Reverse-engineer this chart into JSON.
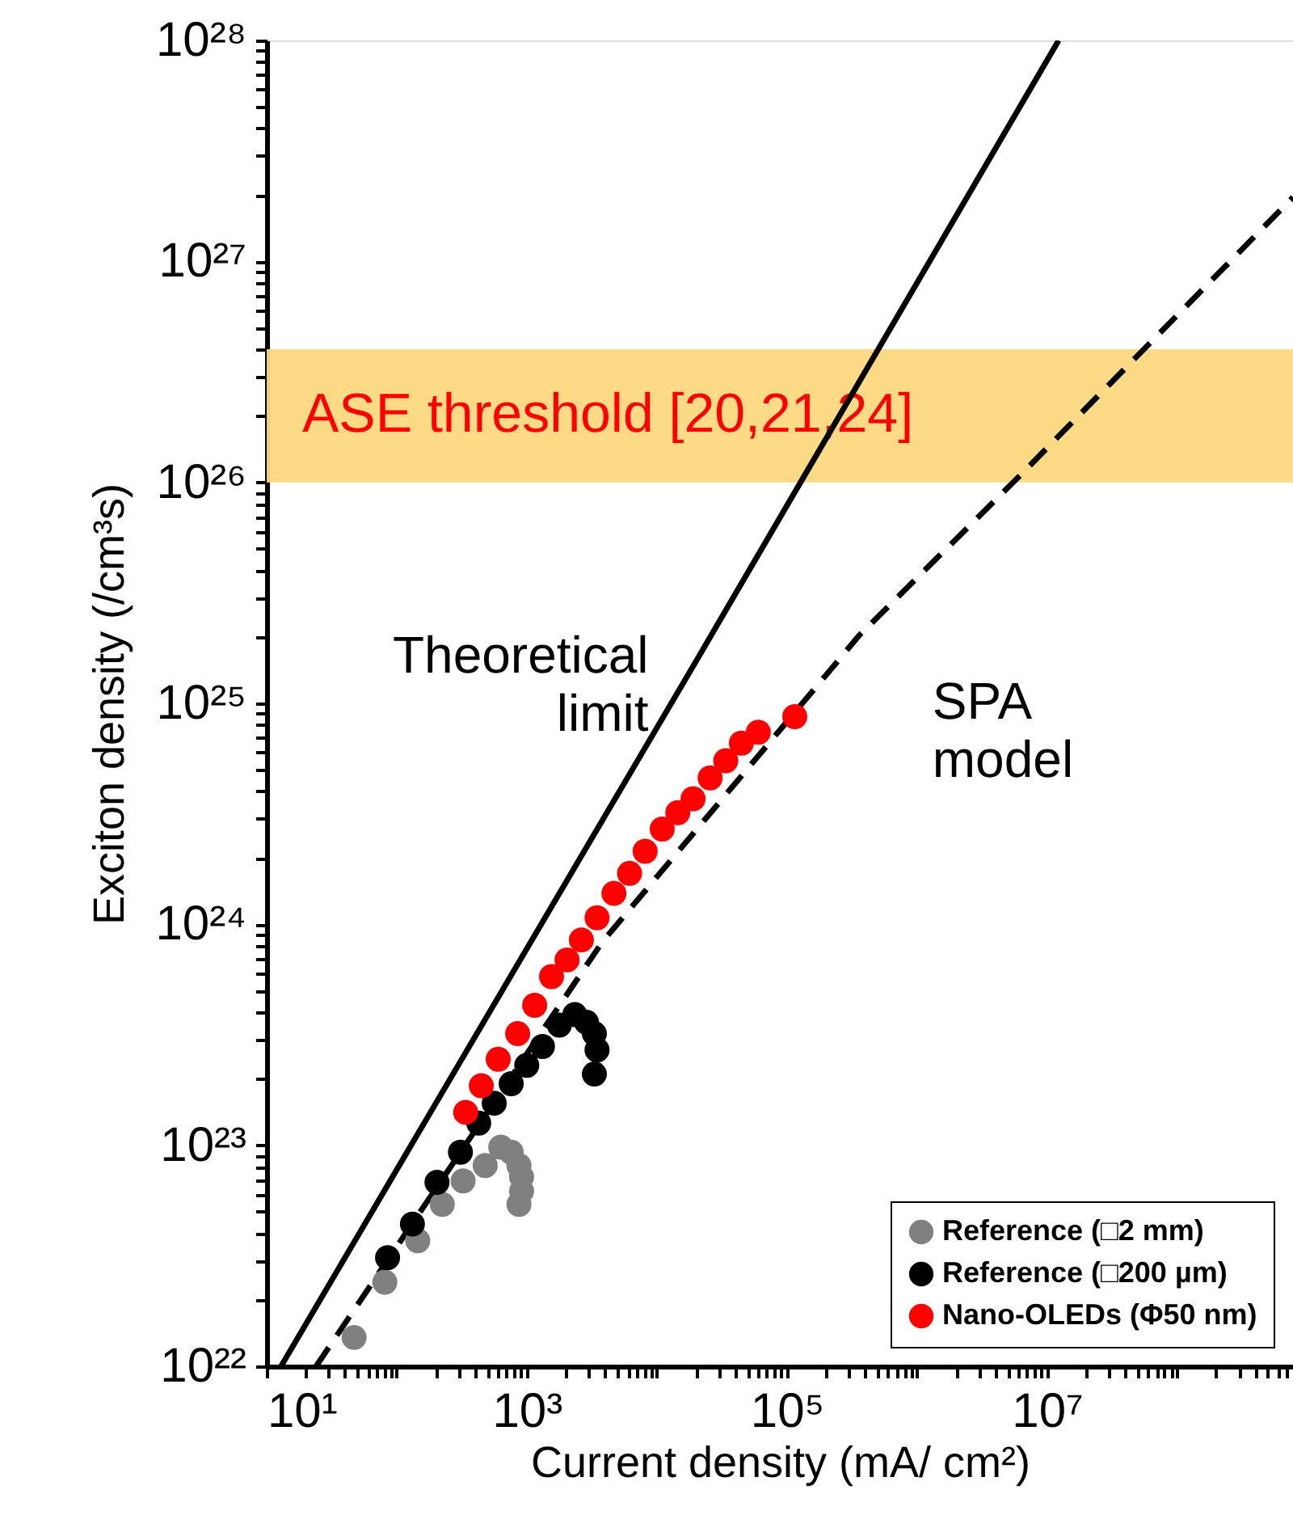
{
  "chart_data": {
    "type": "scatter",
    "log": "xy",
    "xlabel": "Current density (mA/ cm²)",
    "ylabel": "Exciton density (/cm³s)",
    "xlim": [
      10,
      780000000
    ],
    "ylim": [
      1e+22,
      1e+28
    ],
    "xticks": [
      {
        "value": 10,
        "label": "10¹"
      },
      {
        "value": 20,
        "label": null
      },
      {
        "value": 30,
        "label": null
      },
      {
        "value": 40,
        "label": null
      },
      {
        "value": 50,
        "label": null
      },
      {
        "value": 60,
        "label": null
      },
      {
        "value": 70,
        "label": null
      },
      {
        "value": 80,
        "label": null
      },
      {
        "value": 90,
        "label": null
      },
      {
        "value": 100,
        "label": null
      },
      {
        "value": 200,
        "label": null
      },
      {
        "value": 300,
        "label": null
      },
      {
        "value": 400,
        "label": null
      },
      {
        "value": 500,
        "label": null
      },
      {
        "value": 600,
        "label": null
      },
      {
        "value": 700,
        "label": null
      },
      {
        "value": 800,
        "label": null
      },
      {
        "value": 900,
        "label": null
      },
      {
        "value": 1000,
        "label": "10³"
      },
      {
        "value": 2000,
        "label": null
      },
      {
        "value": 3000,
        "label": null
      },
      {
        "value": 4000,
        "label": null
      },
      {
        "value": 5000,
        "label": null
      },
      {
        "value": 6000,
        "label": null
      },
      {
        "value": 7000,
        "label": null
      },
      {
        "value": 8000,
        "label": null
      },
      {
        "value": 9000,
        "label": null
      },
      {
        "value": 10000,
        "label": null
      },
      {
        "value": 20000,
        "label": null
      },
      {
        "value": 30000,
        "label": null
      },
      {
        "value": 40000,
        "label": null
      },
      {
        "value": 50000,
        "label": null
      },
      {
        "value": 60000,
        "label": null
      },
      {
        "value": 70000,
        "label": null
      },
      {
        "value": 80000,
        "label": null
      },
      {
        "value": 90000,
        "label": null
      },
      {
        "value": 100000,
        "label": "10⁵"
      },
      {
        "value": 200000,
        "label": null
      },
      {
        "value": 300000,
        "label": null
      },
      {
        "value": 400000,
        "label": null
      },
      {
        "value": 500000,
        "label": null
      },
      {
        "value": 600000,
        "label": null
      },
      {
        "value": 700000,
        "label": null
      },
      {
        "value": 800000,
        "label": null
      },
      {
        "value": 900000,
        "label": null
      },
      {
        "value": 1000000,
        "label": null
      },
      {
        "value": 2000000,
        "label": null
      },
      {
        "value": 3000000,
        "label": null
      },
      {
        "value": 4000000,
        "label": null
      },
      {
        "value": 5000000,
        "label": null
      },
      {
        "value": 6000000,
        "label": null
      },
      {
        "value": 7000000,
        "label": null
      },
      {
        "value": 8000000,
        "label": null
      },
      {
        "value": 9000000,
        "label": null
      },
      {
        "value": 10000000,
        "label": "10⁷"
      },
      {
        "value": 20000000,
        "label": null
      },
      {
        "value": 30000000,
        "label": null
      },
      {
        "value": 40000000,
        "label": null
      },
      {
        "value": 50000000,
        "label": null
      },
      {
        "value": 60000000,
        "label": null
      },
      {
        "value": 70000000,
        "label": null
      },
      {
        "value": 80000000,
        "label": null
      },
      {
        "value": 90000000,
        "label": null
      },
      {
        "value": 100000000,
        "label": null
      },
      {
        "value": 200000000,
        "label": null
      },
      {
        "value": 300000000,
        "label": null
      },
      {
        "value": 400000000,
        "label": null
      },
      {
        "value": 500000000,
        "label": null
      },
      {
        "value": 600000000,
        "label": null
      },
      {
        "value": 700000000,
        "label": null
      }
    ],
    "yticks": [
      {
        "value": 1e+22,
        "label": "10²²"
      },
      {
        "value": 2e+22,
        "label": null
      },
      {
        "value": 3e+22,
        "label": null
      },
      {
        "value": 4e+22,
        "label": null
      },
      {
        "value": 5e+22,
        "label": null
      },
      {
        "value": 6e+22,
        "label": null
      },
      {
        "value": 7e+22,
        "label": null
      },
      {
        "value": 8e+22,
        "label": null
      },
      {
        "value": 9e+22,
        "label": null
      },
      {
        "value": 1e+23,
        "label": "10²³"
      },
      {
        "value": 2e+23,
        "label": null
      },
      {
        "value": 3e+23,
        "label": null
      },
      {
        "value": 4e+23,
        "label": null
      },
      {
        "value": 5e+23,
        "label": null
      },
      {
        "value": 6e+23,
        "label": null
      },
      {
        "value": 7e+23,
        "label": null
      },
      {
        "value": 8e+23,
        "label": null
      },
      {
        "value": 9e+23,
        "label": null
      },
      {
        "value": 1e+24,
        "label": "10²⁴"
      },
      {
        "value": 2e+24,
        "label": null
      },
      {
        "value": 3e+24,
        "label": null
      },
      {
        "value": 4e+24,
        "label": null
      },
      {
        "value": 5e+24,
        "label": null
      },
      {
        "value": 6e+24,
        "label": null
      },
      {
        "value": 7e+24,
        "label": null
      },
      {
        "value": 8e+24,
        "label": null
      },
      {
        "value": 9e+24,
        "label": null
      },
      {
        "value": 1e+25,
        "label": "10²⁵"
      },
      {
        "value": 2e+25,
        "label": null
      },
      {
        "value": 3e+25,
        "label": null
      },
      {
        "value": 4e+25,
        "label": null
      },
      {
        "value": 5e+25,
        "label": null
      },
      {
        "value": 6e+25,
        "label": null
      },
      {
        "value": 7e+25,
        "label": null
      },
      {
        "value": 8e+25,
        "label": null
      },
      {
        "value": 9e+25,
        "label": null
      },
      {
        "value": 1e+26,
        "label": "10²⁶"
      },
      {
        "value": 2e+26,
        "label": null
      },
      {
        "value": 3e+26,
        "label": null
      },
      {
        "value": 4e+26,
        "label": null
      },
      {
        "value": 5e+26,
        "label": null
      },
      {
        "value": 6e+26,
        "label": null
      },
      {
        "value": 7e+26,
        "label": null
      },
      {
        "value": 8e+26,
        "label": null
      },
      {
        "value": 9e+26,
        "label": null
      },
      {
        "value": 1e+27,
        "label": "10²⁷"
      },
      {
        "value": 2e+27,
        "label": null
      },
      {
        "value": 3e+27,
        "label": null
      },
      {
        "value": 4e+27,
        "label": null
      },
      {
        "value": 5e+27,
        "label": null
      },
      {
        "value": 6e+27,
        "label": null
      },
      {
        "value": 7e+27,
        "label": null
      },
      {
        "value": 8e+27,
        "label": null
      },
      {
        "value": 9e+27,
        "label": null
      },
      {
        "value": 1e+28,
        "label": "10²⁸"
      }
    ],
    "grid": false,
    "legend": "bottom right",
    "marker": "circle",
    "bands": [
      {
        "axis": "y",
        "from": 1e+26,
        "to": 4e+26,
        "label": "ASE threshold [20,21,24]",
        "color": "#fdd97f"
      }
    ],
    "series": [
      {
        "name": "Theoretical limit",
        "type": "line",
        "line_style": "solid",
        "marker": "none",
        "color": "#000000",
        "x": [
          12.9,
          20400,
          12300000
        ],
        "values": [
          1e+22,
          1.58e+25,
          1e+28
        ]
      },
      {
        "name": "SPA model",
        "type": "line",
        "line_style": "dashed",
        "marker": "none",
        "color": "#000000",
        "x": [
          24,
          47,
          3800,
          363000,
          6170000,
          780000000
        ],
        "values": [
          1e+22,
          1.8e+22,
          8.3e+23,
          2.04e+25,
          1.07e+26,
          1.95e+27
        ]
      },
      {
        "name": "Reference (□2 mm)",
        "color": "#808080",
        "x": [
          47,
          81,
          145,
          224,
          324,
          479,
          631,
          759,
          871,
          912,
          912,
          871
        ],
        "values": [
          1.35e+22,
          2.4e+22,
          3.7e+22,
          5.4e+22,
          6.9e+22,
          8.1e+22,
          9.8e+22,
          9.3e+22,
          8.1e+22,
          7.2e+22,
          6.2e+22,
          5.4e+22
        ]
      },
      {
        "name": "Reference (□200 µm)",
        "color": "#000000",
        "x": [
          85,
          132,
          204,
          309,
          427,
          562,
          759,
          1000,
          1320,
          1780,
          2340,
          2880,
          3310,
          3470,
          3310
        ],
        "values": [
          3.1e+22,
          4.4e+22,
          6.8e+22,
          9.3e+22,
          1.26e+23,
          1.55e+23,
          1.9e+23,
          2.3e+23,
          2.8e+23,
          3.5e+23,
          3.9e+23,
          3.6e+23,
          3.2e+23,
          2.7e+23,
          2.1e+23
        ]
      },
      {
        "name": "Nano-OLEDs (Φ50 nm)",
        "color": "#ff0000",
        "x": [
          339,
          447,
          603,
          851,
          1150,
          1550,
          2040,
          2630,
          3470,
          4680,
          6170,
          8130,
          11000,
          14500,
          19000,
          25700,
          33900,
          44700,
          60300,
          115000
        ],
        "values": [
          1.41e+23,
          1.86e+23,
          2.45e+23,
          3.2e+23,
          4.3e+23,
          5.8e+23,
          6.9e+23,
          8.5e+23,
          1.07e+24,
          1.38e+24,
          1.7e+24,
          2.14e+24,
          2.7e+24,
          3.2e+24,
          3.7e+24,
          4.6e+24,
          5.5e+24,
          6.6e+24,
          7.4e+24,
          8.7e+24
        ]
      }
    ]
  }
}
